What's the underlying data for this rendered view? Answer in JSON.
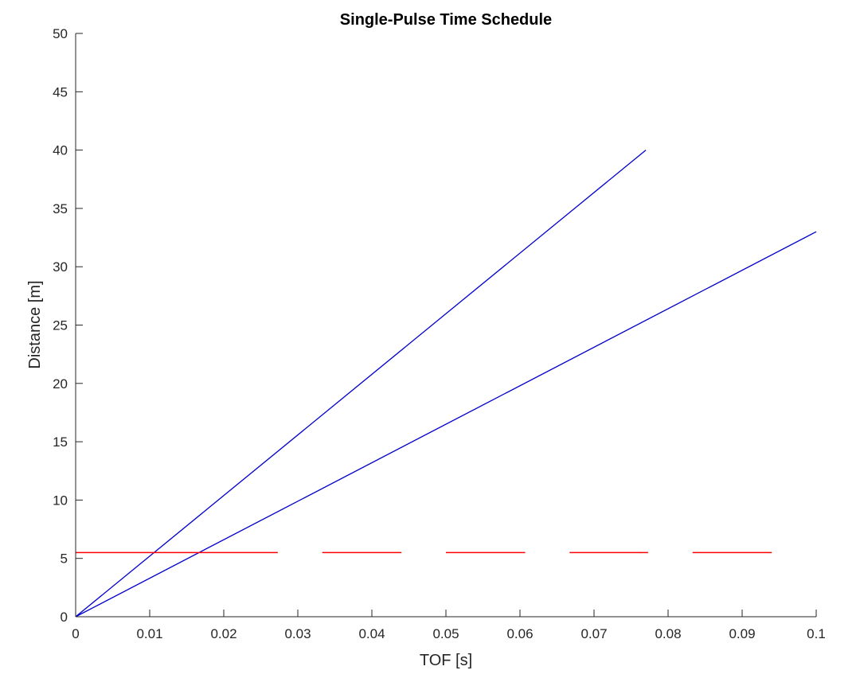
{
  "chart_data": {
    "type": "line",
    "title": "Single-Pulse Time Schedule",
    "xlabel": "TOF [s]",
    "ylabel": "Distance [m]",
    "xlim": [
      0,
      0.1
    ],
    "ylim": [
      0,
      50
    ],
    "xticks": [
      0,
      0.01,
      0.02,
      0.03,
      0.04,
      0.05,
      0.06,
      0.07,
      0.08,
      0.09,
      0.1
    ],
    "xtick_labels": [
      "0",
      "0.01",
      "0.02",
      "0.03",
      "0.04",
      "0.05",
      "0.06",
      "0.07",
      "0.08",
      "0.09",
      "0.1"
    ],
    "yticks": [
      0,
      5,
      10,
      15,
      20,
      25,
      30,
      35,
      40,
      45,
      50
    ],
    "ytick_labels": [
      "0",
      "5",
      "10",
      "15",
      "20",
      "25",
      "30",
      "35",
      "40",
      "45",
      "50"
    ],
    "grid": false,
    "series": [
      {
        "color": "#0000cc",
        "x": [
          0,
          0.077
        ],
        "y": [
          0,
          40
        ]
      },
      {
        "color": "#0000cc",
        "x": [
          0,
          0.1
        ],
        "y": [
          0,
          33
        ]
      }
    ],
    "pulses": {
      "color": "#ff0000",
      "y": 5.5,
      "segments": [
        [
          0,
          0.0273
        ],
        [
          0.0333,
          0.044
        ],
        [
          0.05,
          0.0607
        ],
        [
          0.0667,
          0.0773
        ],
        [
          0.0833,
          0.094
        ]
      ]
    }
  }
}
